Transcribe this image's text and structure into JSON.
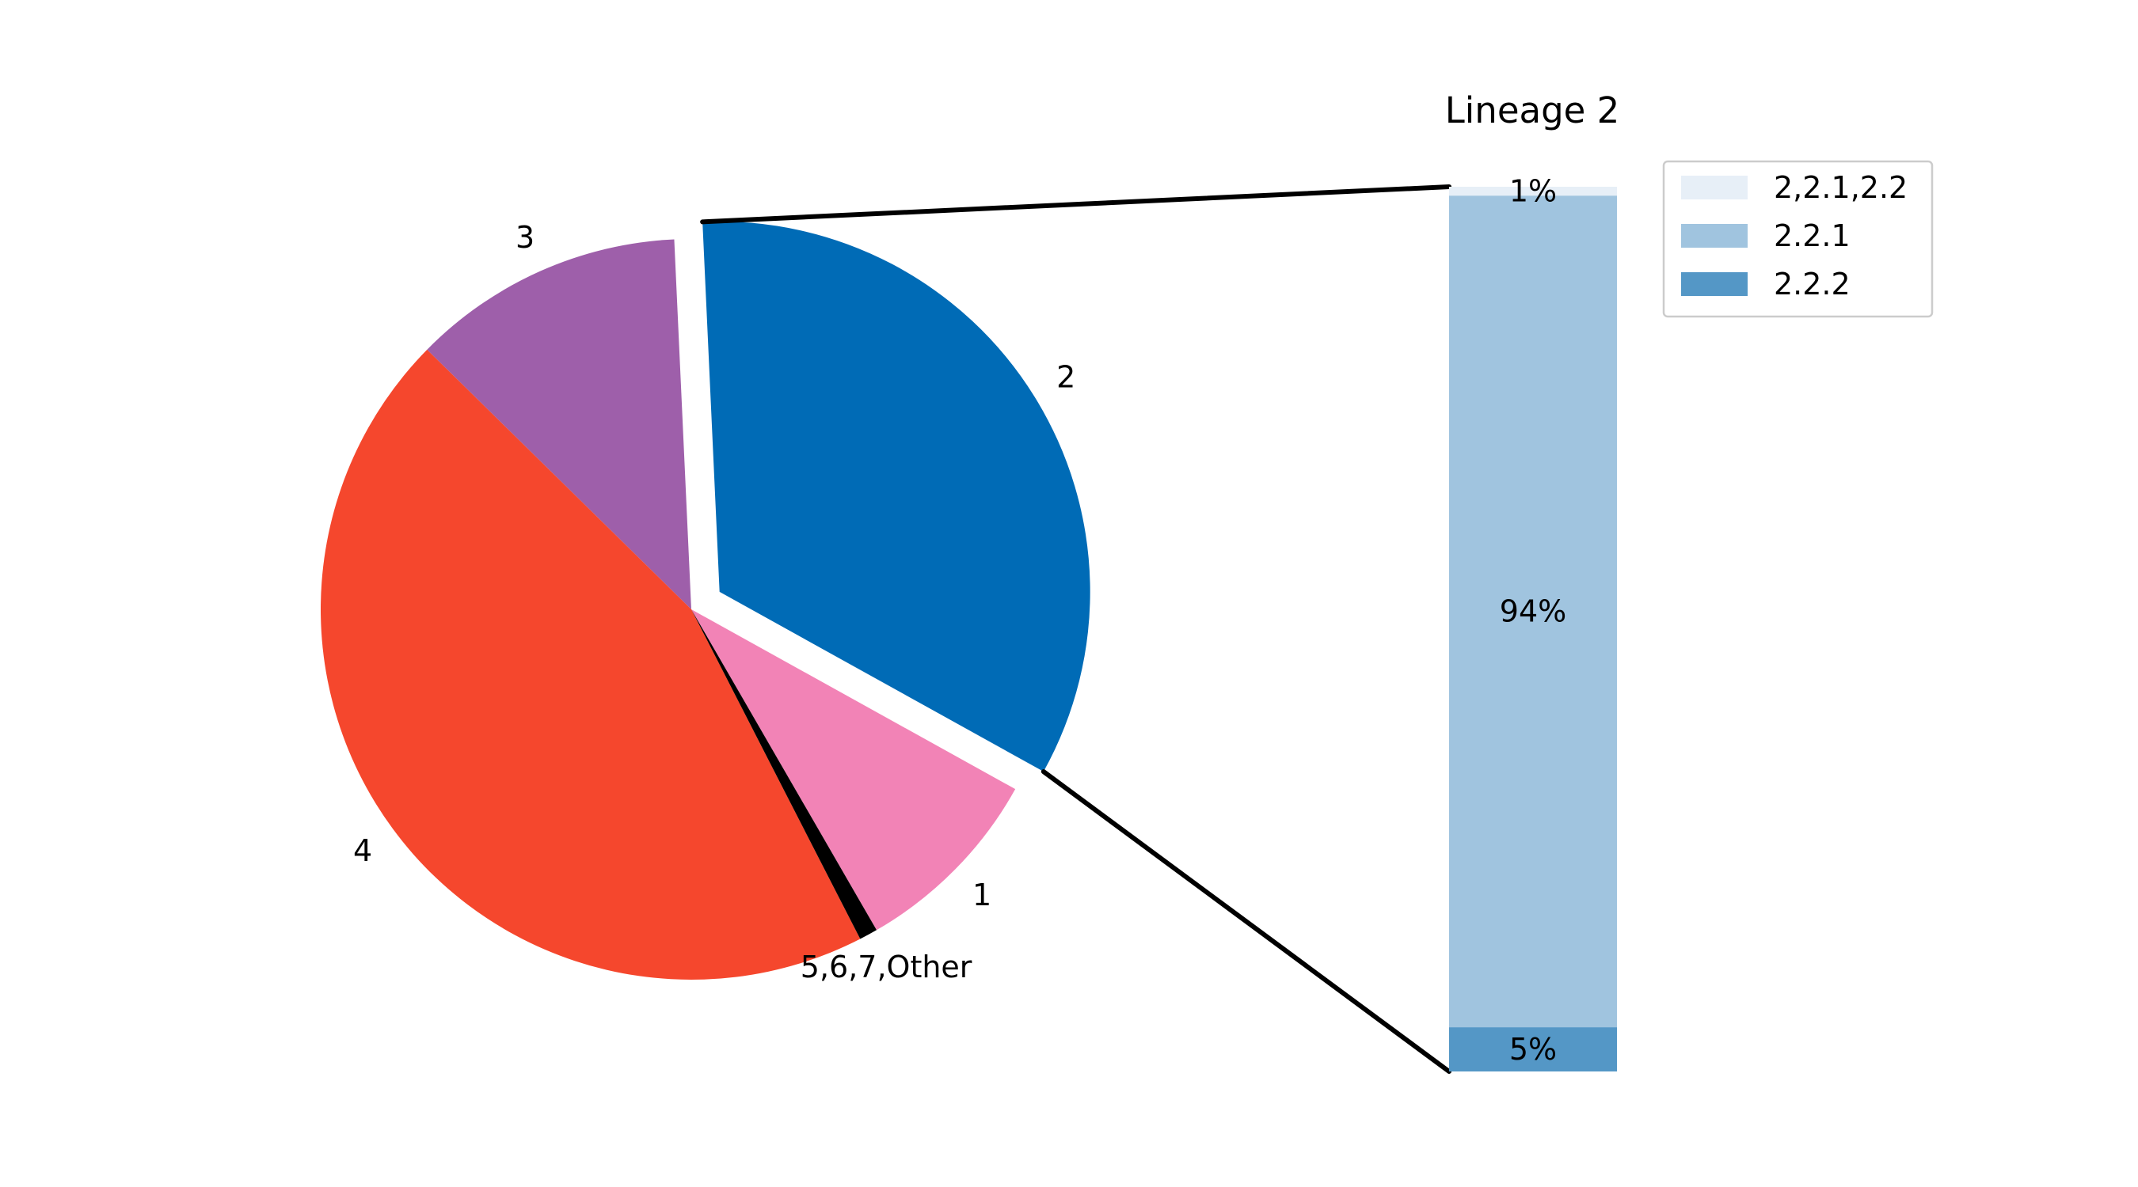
{
  "chart_data": [
    {
      "type": "pie",
      "slices": [
        {
          "label": "1",
          "value": 8.6,
          "color": "#F283B6"
        },
        {
          "label": "2",
          "value": 33.8,
          "color": "#006BB6",
          "exploded": true
        },
        {
          "label": "3",
          "value": 11.9,
          "color": "#9E5FAA"
        },
        {
          "label": "4",
          "value": 44.9,
          "color": "#F5472D"
        },
        {
          "label": "5,6,7,Other",
          "value": 0.8,
          "color": "#000000"
        }
      ],
      "start_angle_deg": -60,
      "counterclockwise": true
    },
    {
      "type": "bar",
      "stacked": true,
      "title": "Lineage 2",
      "series": [
        {
          "name": "2.2.2",
          "value": 5,
          "label": "5%",
          "color": "#5497C6"
        },
        {
          "name": "2.2.1",
          "value": 94,
          "label": "94%",
          "color": "#A0C4DF"
        },
        {
          "name": "2,2.1,2.2",
          "value": 1,
          "label": "1%",
          "color": "#E7EFF7"
        }
      ],
      "legend_order": [
        "2,2.1,2.2",
        "2.2.1",
        "2.2.2"
      ],
      "legend_placement": "upper-right"
    }
  ]
}
